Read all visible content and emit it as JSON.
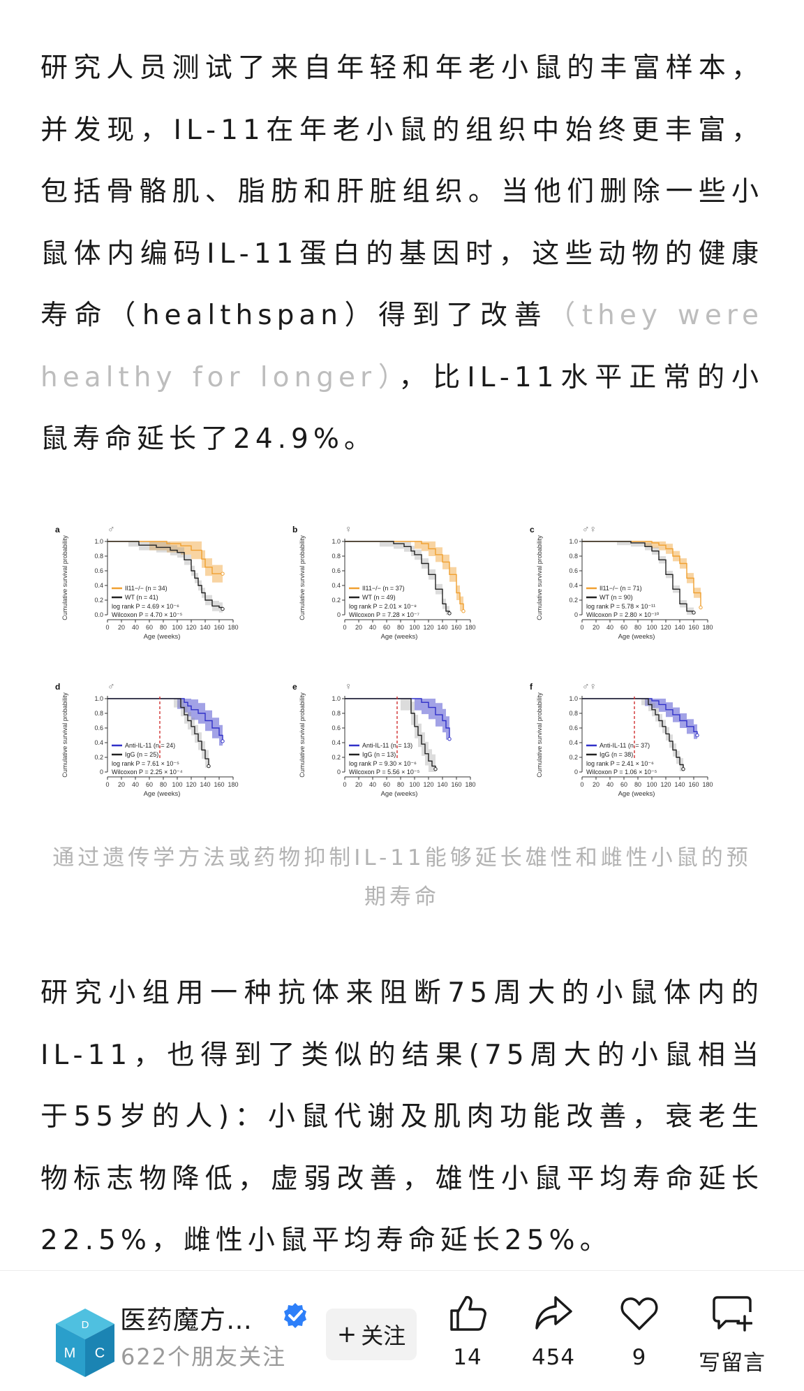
{
  "article": {
    "p1": {
      "part1": "研究人员测试了来自年轻和年老小鼠的丰富样本，并发现，IL-11在年老小鼠的组织中始终更丰富，包括骨骼肌、脂肪和肝脏组织。当他们删除一些小鼠体内编码IL-11蛋白的基因时，这些动物的健康寿命（healthspan）得到了改善",
      "faint": "（they were healthy for longer）",
      "part2": "，比IL-11水平正常的小鼠寿命延长了24.9%。"
    },
    "p2": "研究小组用一种抗体来阻断75周大的小鼠体内的IL-11，也得到了类似的结果(75周大的小鼠相当于55岁的人)：小鼠代谢及肌肉功能改善，衰老生物标志物降低，虚弱改善，雄性小鼠平均寿命延长22.5%，雌性小鼠平均寿命延长25%。",
    "figure_caption": "通过遗传学方法或药物抑制IL-11能够延长雄性和雌性小鼠的预期寿命"
  },
  "chart_data": [
    {
      "panel": "a",
      "sex": "♂",
      "type": "line",
      "xlabel": "Age (weeks)",
      "ylabel": "Cumulative survival probability",
      "xlim": [
        0,
        180
      ],
      "ylim": [
        0,
        1
      ],
      "xticks": [
        0,
        20,
        40,
        60,
        80,
        100,
        120,
        140,
        160,
        180
      ],
      "yticks": [
        0.0,
        0.2,
        0.4,
        0.6,
        0.8,
        1.0
      ],
      "marker": null,
      "series": [
        {
          "name": "Il11−/− (n = 34)",
          "color": "#f0a030",
          "x": [
            0,
            60,
            85,
            100,
            105,
            120,
            135,
            140,
            150,
            160,
            165
          ],
          "y": [
            1,
            1,
            0.97,
            0.97,
            0.94,
            0.88,
            0.76,
            0.65,
            0.56,
            0.56,
            0.56
          ],
          "band": 0.12
        },
        {
          "name": "WT (n = 41)",
          "color": "#222222",
          "x": [
            0,
            30,
            45,
            70,
            90,
            100,
            110,
            120,
            125,
            130,
            135,
            140,
            150,
            160,
            165
          ],
          "y": [
            1,
            1,
            0.95,
            0.92,
            0.88,
            0.85,
            0.75,
            0.6,
            0.5,
            0.4,
            0.3,
            0.2,
            0.12,
            0.1,
            0.08
          ],
          "band": 0.07
        }
      ],
      "stats": [
        "log rank P = 4.69 × 10⁻⁶",
        "Wilcoxon P = 4.70 × 10⁻⁵"
      ]
    },
    {
      "panel": "b",
      "sex": "♀",
      "type": "line",
      "xlabel": "Age (weeks)",
      "ylabel": "Cumulative survival probability",
      "xlim": [
        0,
        180
      ],
      "ylim": [
        0,
        1
      ],
      "xticks": [
        0,
        20,
        40,
        60,
        80,
        100,
        120,
        140,
        160,
        180
      ],
      "yticks": [
        0.0,
        0.2,
        0.4,
        0.6,
        0.8,
        1.0
      ],
      "marker": null,
      "series": [
        {
          "name": "Il11−/− (n = 37)",
          "color": "#f0a030",
          "x": [
            0,
            100,
            110,
            120,
            130,
            140,
            150,
            160,
            165,
            170
          ],
          "y": [
            1,
            1,
            0.97,
            0.9,
            0.82,
            0.72,
            0.55,
            0.3,
            0.15,
            0.05
          ],
          "band": 0.1
        },
        {
          "name": "WT (n = 49)",
          "color": "#222222",
          "x": [
            0,
            50,
            70,
            85,
            95,
            100,
            110,
            120,
            130,
            140,
            145,
            150
          ],
          "y": [
            1,
            1,
            0.97,
            0.93,
            0.87,
            0.82,
            0.7,
            0.55,
            0.35,
            0.15,
            0.05,
            0.02
          ],
          "band": 0.07
        }
      ],
      "stats": [
        "log rank P = 2.01 × 10⁻⁸",
        "Wilcoxon P = 7.28 × 10⁻⁷"
      ]
    },
    {
      "panel": "c",
      "sex": "♂♀",
      "type": "line",
      "xlabel": "Age (weeks)",
      "ylabel": "Cumulative survival probability",
      "xlim": [
        0,
        180
      ],
      "ylim": [
        0,
        1
      ],
      "xticks": [
        0,
        20,
        40,
        60,
        80,
        100,
        120,
        140,
        160,
        180
      ],
      "yticks": [
        0.0,
        0.2,
        0.4,
        0.6,
        0.8,
        1.0
      ],
      "marker": null,
      "series": [
        {
          "name": "Il11−/− (n = 71)",
          "color": "#f0a030",
          "x": [
            0,
            90,
            100,
            110,
            120,
            130,
            140,
            150,
            160,
            170
          ],
          "y": [
            1,
            1,
            0.98,
            0.95,
            0.9,
            0.8,
            0.7,
            0.5,
            0.3,
            0.1
          ],
          "band": 0.07
        },
        {
          "name": "WT (n = 90)",
          "color": "#222222",
          "x": [
            0,
            50,
            70,
            90,
            100,
            110,
            120,
            130,
            140,
            150,
            160
          ],
          "y": [
            1,
            1,
            0.98,
            0.93,
            0.87,
            0.75,
            0.55,
            0.35,
            0.15,
            0.05,
            0.03
          ],
          "band": 0.05
        }
      ],
      "stats": [
        "log rank P = 5.78 × 10⁻¹¹",
        "Wilcoxon P = 2.80 × 10⁻¹⁰"
      ]
    },
    {
      "panel": "d",
      "sex": "♂",
      "type": "line",
      "xlabel": "Age (weeks)",
      "ylabel": "Cumulative survival probability",
      "xlim": [
        0,
        180
      ],
      "ylim": [
        0,
        1
      ],
      "xticks": [
        0,
        20,
        40,
        60,
        80,
        100,
        120,
        140,
        160,
        180
      ],
      "yticks": [
        0.0,
        0.2,
        0.4,
        0.6,
        0.8,
        1.0
      ],
      "marker": 75,
      "series": [
        {
          "name": "Anti-IL-11 (n = 24)",
          "color": "#3030c8",
          "x": [
            0,
            100,
            110,
            115,
            120,
            130,
            140,
            150,
            160,
            165
          ],
          "y": [
            1,
            1,
            0.95,
            0.9,
            0.85,
            0.8,
            0.7,
            0.6,
            0.5,
            0.42
          ],
          "band": 0.14
        },
        {
          "name": "IgG (n = 25)",
          "color": "#222222",
          "x": [
            0,
            95,
            105,
            110,
            115,
            120,
            125,
            130,
            135,
            140,
            145
          ],
          "y": [
            1,
            1,
            0.88,
            0.78,
            0.7,
            0.62,
            0.52,
            0.42,
            0.3,
            0.18,
            0.08
          ],
          "band": 0.12
        }
      ],
      "stats": [
        "log rank P = 7.61 × 10⁻⁵",
        "Wilcoxon P = 2.25 × 10⁻⁴"
      ]
    },
    {
      "panel": "e",
      "sex": "♀",
      "type": "line",
      "xlabel": "Age (weeks)",
      "ylabel": "Cumulative survival probability",
      "xlim": [
        0,
        180
      ],
      "ylim": [
        0,
        1
      ],
      "xticks": [
        0,
        20,
        40,
        60,
        80,
        100,
        120,
        140,
        160,
        180
      ],
      "yticks": [
        0.0,
        0.2,
        0.4,
        0.6,
        0.8,
        1.0
      ],
      "marker": 75,
      "series": [
        {
          "name": "Anti-IL-11 (n = 13)",
          "color": "#3030c8",
          "x": [
            0,
            100,
            110,
            120,
            130,
            140,
            145,
            150
          ],
          "y": [
            1,
            1,
            0.95,
            0.88,
            0.78,
            0.7,
            0.6,
            0.45
          ],
          "band": 0.16
        },
        {
          "name": "IgG (n = 13)",
          "color": "#222222",
          "x": [
            0,
            80,
            95,
            100,
            105,
            110,
            115,
            120,
            125,
            130
          ],
          "y": [
            1,
            1,
            0.8,
            0.62,
            0.5,
            0.38,
            0.25,
            0.15,
            0.08,
            0.04
          ],
          "band": 0.16
        }
      ],
      "stats": [
        "log rank P = 9.30 × 10⁻⁶",
        "Wilcoxon P = 5.56 × 10⁻⁵"
      ]
    },
    {
      "panel": "f",
      "sex": "♂♀",
      "type": "line",
      "xlabel": "Age (weeks)",
      "ylabel": "Cumulative survival probability",
      "xlim": [
        0,
        180
      ],
      "ylim": [
        0,
        1
      ],
      "xticks": [
        0,
        20,
        40,
        60,
        80,
        100,
        120,
        140,
        160,
        180
      ],
      "yticks": [
        0.0,
        0.2,
        0.4,
        0.6,
        0.8,
        1.0
      ],
      "marker": 75,
      "series": [
        {
          "name": "Anti-IL-11 (n = 37)",
          "color": "#3030c8",
          "x": [
            0,
            90,
            100,
            110,
            120,
            130,
            140,
            150,
            160,
            165
          ],
          "y": [
            1,
            1,
            0.97,
            0.92,
            0.85,
            0.78,
            0.7,
            0.62,
            0.55,
            0.5
          ],
          "band": 0.1
        },
        {
          "name": "IgG (n = 38)",
          "color": "#222222",
          "x": [
            0,
            85,
            95,
            100,
            105,
            110,
            115,
            120,
            125,
            130,
            135,
            140,
            145
          ],
          "y": [
            1,
            1,
            0.92,
            0.85,
            0.78,
            0.7,
            0.62,
            0.52,
            0.42,
            0.3,
            0.2,
            0.1,
            0.04
          ],
          "band": 0.09
        }
      ],
      "stats": [
        "log rank P = 2.41 × 10⁻⁶",
        "Wilcoxon P = 1.06 × 10⁻⁵"
      ]
    }
  ],
  "author": {
    "name": "医药魔方…",
    "followers": "622个朋友关注",
    "avatar_letters": [
      "D",
      "M",
      "C"
    ]
  },
  "actions": {
    "follow_label": "关注",
    "like_count": "14",
    "share_count": "454",
    "fav_count": "9",
    "comment_label": "写留言"
  },
  "colors": {
    "orange": "#f0a030",
    "blue": "#3030c8",
    "verified": "#2d7ff9",
    "avatar": "#2aa0c8",
    "faint_text": "#bdbdbd"
  }
}
